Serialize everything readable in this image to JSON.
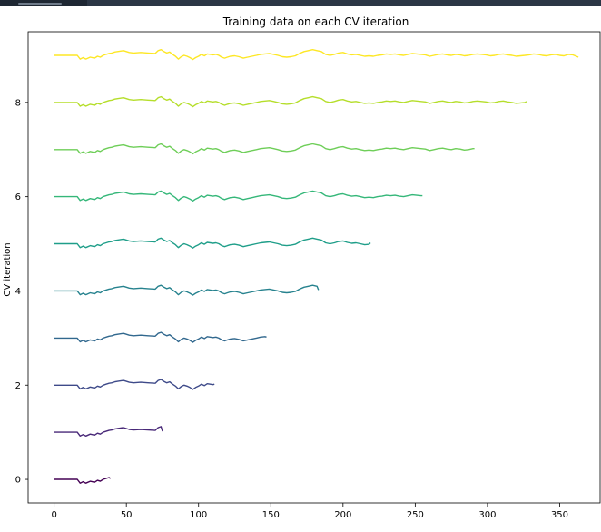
{
  "chart_data": {
    "type": "line",
    "title": "Training data on each CV iteration",
    "xlabel": "",
    "ylabel": "CV iteration",
    "xlim": [
      -18,
      378
    ],
    "ylim": [
      -0.5,
      9.5
    ],
    "xticks": [
      0,
      50,
      100,
      150,
      200,
      250,
      300,
      350
    ],
    "xtick_labels": [
      "0",
      "50",
      "100",
      "150",
      "200",
      "250",
      "300",
      "350"
    ],
    "yticks": [
      0,
      2,
      4,
      6,
      8
    ],
    "ytick_labels": [
      "0",
      "2",
      "4",
      "6",
      "8"
    ],
    "grid": false,
    "legend": "none",
    "series": [
      {
        "iteration": 0,
        "x_end": 39,
        "color": "#440154"
      },
      {
        "iteration": 1,
        "x_end": 75,
        "color": "#482878"
      },
      {
        "iteration": 2,
        "x_end": 111,
        "color": "#3e4a89"
      },
      {
        "iteration": 3,
        "x_end": 147,
        "color": "#31688e"
      },
      {
        "iteration": 4,
        "x_end": 183,
        "color": "#26828e"
      },
      {
        "iteration": 5,
        "x_end": 219,
        "color": "#1f9e89"
      },
      {
        "iteration": 6,
        "x_end": 255,
        "color": "#35b779"
      },
      {
        "iteration": 7,
        "x_end": 291,
        "color": "#6ece58"
      },
      {
        "iteration": 8,
        "x_end": 327,
        "color": "#b5de2b"
      },
      {
        "iteration": 9,
        "x_end": 363,
        "color": "#fde725"
      }
    ],
    "profile_points": [
      [
        0,
        0.0
      ],
      [
        16,
        0.0
      ],
      [
        18,
        -0.08
      ],
      [
        20,
        -0.05
      ],
      [
        22,
        -0.08
      ],
      [
        25,
        -0.04
      ],
      [
        28,
        -0.06
      ],
      [
        30,
        -0.02
      ],
      [
        32,
        -0.04
      ],
      [
        34,
        0.0
      ],
      [
        36,
        0.02
      ],
      [
        38,
        0.04
      ],
      [
        40,
        0.05
      ],
      [
        42,
        0.07
      ],
      [
        44,
        0.08
      ],
      [
        46,
        0.09
      ],
      [
        48,
        0.1
      ],
      [
        50,
        0.08
      ],
      [
        52,
        0.06
      ],
      [
        55,
        0.05
      ],
      [
        60,
        0.06
      ],
      [
        65,
        0.05
      ],
      [
        70,
        0.04
      ],
      [
        72,
        0.1
      ],
      [
        74,
        0.12
      ],
      [
        76,
        0.08
      ],
      [
        78,
        0.05
      ],
      [
        80,
        0.07
      ],
      [
        82,
        0.02
      ],
      [
        84,
        -0.02
      ],
      [
        86,
        -0.08
      ],
      [
        88,
        -0.03
      ],
      [
        90,
        0.0
      ],
      [
        92,
        -0.02
      ],
      [
        94,
        -0.05
      ],
      [
        96,
        -0.09
      ],
      [
        98,
        -0.05
      ],
      [
        100,
        -0.02
      ],
      [
        102,
        0.02
      ],
      [
        104,
        -0.01
      ],
      [
        106,
        0.03
      ],
      [
        108,
        0.02
      ],
      [
        110,
        0.01
      ],
      [
        112,
        0.02
      ],
      [
        114,
        0.0
      ],
      [
        116,
        -0.04
      ],
      [
        118,
        -0.06
      ],
      [
        120,
        -0.04
      ],
      [
        122,
        -0.02
      ],
      [
        125,
        -0.01
      ],
      [
        128,
        -0.03
      ],
      [
        131,
        -0.06
      ],
      [
        134,
        -0.04
      ],
      [
        137,
        -0.02
      ],
      [
        140,
        0.0
      ],
      [
        143,
        0.02
      ],
      [
        146,
        0.03
      ],
      [
        149,
        0.04
      ],
      [
        152,
        0.02
      ],
      [
        155,
        0.0
      ],
      [
        158,
        -0.03
      ],
      [
        161,
        -0.04
      ],
      [
        164,
        -0.03
      ],
      [
        167,
        -0.01
      ],
      [
        170,
        0.04
      ],
      [
        173,
        0.08
      ],
      [
        176,
        0.1
      ],
      [
        179,
        0.12
      ],
      [
        182,
        0.1
      ],
      [
        185,
        0.08
      ],
      [
        188,
        0.02
      ],
      [
        191,
        0.0
      ],
      [
        194,
        0.02
      ],
      [
        197,
        0.05
      ],
      [
        200,
        0.06
      ],
      [
        203,
        0.03
      ],
      [
        206,
        0.01
      ],
      [
        209,
        0.02
      ],
      [
        212,
        0.0
      ],
      [
        215,
        -0.02
      ],
      [
        218,
        -0.01
      ],
      [
        221,
        -0.02
      ],
      [
        224,
        0.0
      ],
      [
        227,
        0.01
      ],
      [
        230,
        0.03
      ],
      [
        233,
        0.02
      ],
      [
        236,
        0.03
      ],
      [
        239,
        0.01
      ],
      [
        242,
        0.0
      ],
      [
        245,
        0.02
      ],
      [
        248,
        0.04
      ],
      [
        251,
        0.03
      ],
      [
        254,
        0.02
      ],
      [
        257,
        0.01
      ],
      [
        260,
        -0.02
      ],
      [
        263,
        0.0
      ],
      [
        266,
        0.02
      ],
      [
        269,
        0.03
      ],
      [
        272,
        0.01
      ],
      [
        275,
        0.0
      ],
      [
        278,
        0.02
      ],
      [
        281,
        0.01
      ],
      [
        284,
        -0.01
      ],
      [
        287,
        0.0
      ],
      [
        290,
        0.02
      ],
      [
        293,
        0.03
      ],
      [
        296,
        0.02
      ],
      [
        299,
        0.01
      ],
      [
        302,
        -0.01
      ],
      [
        305,
        0.0
      ],
      [
        308,
        0.02
      ],
      [
        311,
        0.03
      ],
      [
        314,
        0.01
      ],
      [
        317,
        0.0
      ],
      [
        320,
        -0.02
      ],
      [
        323,
        -0.01
      ],
      [
        326,
        0.0
      ],
      [
        329,
        0.01
      ],
      [
        332,
        0.03
      ],
      [
        335,
        0.02
      ],
      [
        338,
        0.0
      ],
      [
        341,
        -0.01
      ],
      [
        344,
        0.01
      ],
      [
        347,
        0.02
      ],
      [
        350,
        0.0
      ],
      [
        353,
        -0.01
      ],
      [
        356,
        0.02
      ],
      [
        359,
        0.01
      ],
      [
        363,
        -0.04
      ]
    ]
  }
}
